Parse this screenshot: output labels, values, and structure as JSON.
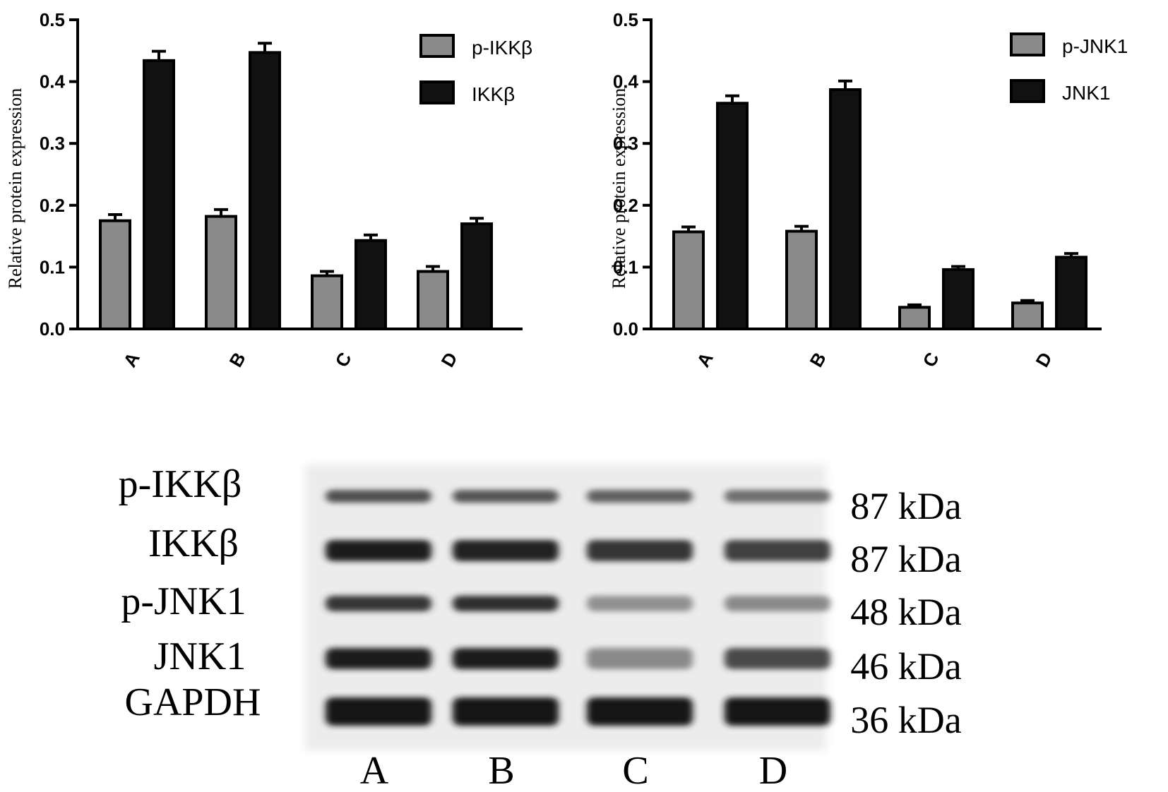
{
  "chart_data": [
    {
      "type": "bar",
      "ylabel": "Relative protein expression",
      "ylim": [
        0,
        0.5
      ],
      "yticks": [
        "0.0",
        "0.1",
        "0.2",
        "0.3",
        "0.4",
        "0.5"
      ],
      "categories": [
        "A",
        "B",
        "C",
        "D"
      ],
      "legend_position": "top-right",
      "series": [
        {
          "name": "p-IKKβ",
          "color": "#8a8a8a",
          "values": [
            0.175,
            0.182,
            0.086,
            0.093
          ],
          "errors": [
            0.01,
            0.011,
            0.007,
            0.008
          ]
        },
        {
          "name": "IKKβ",
          "color": "#111111",
          "values": [
            0.434,
            0.447,
            0.143,
            0.17
          ],
          "errors": [
            0.015,
            0.015,
            0.009,
            0.009
          ]
        }
      ]
    },
    {
      "type": "bar",
      "ylabel": "Relative protein expression",
      "ylim": [
        0,
        0.5
      ],
      "yticks": [
        "0.0",
        "0.1",
        "0.2",
        "0.3",
        "0.4",
        "0.5"
      ],
      "categories": [
        "A",
        "B",
        "C",
        "D"
      ],
      "legend_position": "top-right",
      "series": [
        {
          "name": "p-JNK1",
          "color": "#8a8a8a",
          "values": [
            0.157,
            0.158,
            0.035,
            0.042
          ],
          "errors": [
            0.008,
            0.008,
            0.004,
            0.004
          ]
        },
        {
          "name": "JNK1",
          "color": "#111111",
          "values": [
            0.365,
            0.387,
            0.096,
            0.116
          ],
          "errors": [
            0.012,
            0.014,
            0.005,
            0.006
          ]
        }
      ]
    }
  ],
  "blot": {
    "rows": [
      {
        "name": "p-IKKβ",
        "kda": "87 kDa",
        "intensity": [
          0.72,
          0.7,
          0.64,
          0.58
        ]
      },
      {
        "name": "IKKβ",
        "kda": "87 kDa",
        "intensity": [
          0.95,
          0.93,
          0.85,
          0.8
        ]
      },
      {
        "name": "p-JNK1",
        "kda": "48 kDa",
        "intensity": [
          0.85,
          0.88,
          0.42,
          0.45
        ]
      },
      {
        "name": "JNK1",
        "kda": "46 kDa",
        "intensity": [
          0.95,
          0.97,
          0.45,
          0.75
        ]
      },
      {
        "name": "GAPDH",
        "kda": "36 kDa",
        "intensity": [
          1.0,
          1.0,
          1.0,
          1.0
        ]
      }
    ],
    "lanes": [
      "A",
      "B",
      "C",
      "D"
    ]
  }
}
